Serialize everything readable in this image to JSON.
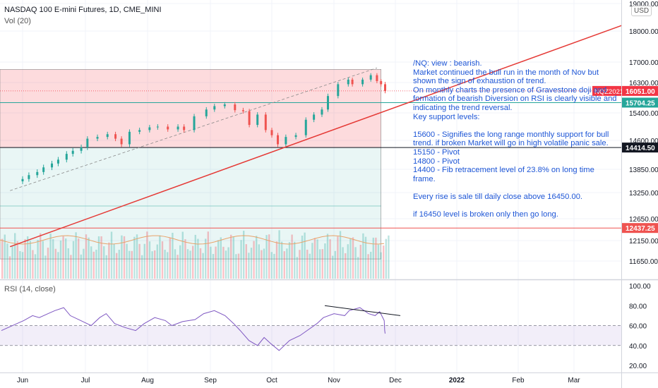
{
  "header": {
    "symbol_title": "NASDAQ 100 E-mini Futures, 1D, CME_MINI",
    "volume_label": "Vol (20)",
    "rsi_label": "RSI (14, close)",
    "currency": "USD"
  },
  "chart_data": [
    {
      "type": "candlestick",
      "title": "NASDAQ 100 E-mini Futures, 1D, CME_MINI",
      "ylim": [
        11200,
        19000
      ],
      "y_tick_labels": [
        "19000.00",
        "18000.00",
        "17000.00",
        "16300.00",
        "15400.00",
        "14600.00",
        "13850.00",
        "13250.00",
        "12650.00",
        "12150.00",
        "11650.00"
      ],
      "x_tick_labels": [
        "Jun",
        "Jul",
        "Aug",
        "Sep",
        "Oct",
        "Nov",
        "Dec",
        "2022",
        "Feb",
        "Mar"
      ],
      "series": [
        {
          "name": "NQZ2021",
          "points": [
            {
              "date": "2021-06-01",
              "close": 13600
            },
            {
              "date": "2021-06-04",
              "close": 13700
            },
            {
              "date": "2021-06-08",
              "close": 13780
            },
            {
              "date": "2021-06-11",
              "close": 13900
            },
            {
              "date": "2021-06-15",
              "close": 14000
            },
            {
              "date": "2021-06-18",
              "close": 14100
            },
            {
              "date": "2021-06-22",
              "close": 14250
            },
            {
              "date": "2021-06-25",
              "close": 14330
            },
            {
              "date": "2021-06-29",
              "close": 14420
            },
            {
              "date": "2021-07-02",
              "close": 14650
            },
            {
              "date": "2021-07-07",
              "close": 14700
            },
            {
              "date": "2021-07-12",
              "close": 14780
            },
            {
              "date": "2021-07-16",
              "close": 14650
            },
            {
              "date": "2021-07-19",
              "close": 14500
            },
            {
              "date": "2021-07-23",
              "close": 14850
            },
            {
              "date": "2021-07-28",
              "close": 14900
            },
            {
              "date": "2021-08-02",
              "close": 14980
            },
            {
              "date": "2021-08-06",
              "close": 15000
            },
            {
              "date": "2021-08-11",
              "close": 14920
            },
            {
              "date": "2021-08-16",
              "close": 15000
            },
            {
              "date": "2021-08-19",
              "close": 14900
            },
            {
              "date": "2021-08-24",
              "close": 15300
            },
            {
              "date": "2021-08-30",
              "close": 15500
            },
            {
              "date": "2021-09-03",
              "close": 15600
            },
            {
              "date": "2021-09-08",
              "close": 15650
            },
            {
              "date": "2021-09-13",
              "close": 15480
            },
            {
              "date": "2021-09-17",
              "close": 15450
            },
            {
              "date": "2021-09-20",
              "close": 15050
            },
            {
              "date": "2021-09-24",
              "close": 15350
            },
            {
              "date": "2021-09-28",
              "close": 14900
            },
            {
              "date": "2021-10-01",
              "close": 14750
            },
            {
              "date": "2021-10-04",
              "close": 14500
            },
            {
              "date": "2021-10-08",
              "close": 14700
            },
            {
              "date": "2021-10-13",
              "close": 14750
            },
            {
              "date": "2021-10-18",
              "close": 15200
            },
            {
              "date": "2021-10-22",
              "close": 15350
            },
            {
              "date": "2021-10-26",
              "close": 15500
            },
            {
              "date": "2021-10-29",
              "close": 15900
            },
            {
              "date": "2021-11-03",
              "close": 16250
            },
            {
              "date": "2021-11-08",
              "close": 16400
            },
            {
              "date": "2021-11-10",
              "close": 16250
            },
            {
              "date": "2021-11-15",
              "close": 16400
            },
            {
              "date": "2021-11-19",
              "close": 16550
            },
            {
              "date": "2021-11-22",
              "close": 16350
            },
            {
              "date": "2021-11-24",
              "close": 16250
            },
            {
              "date": "2021-11-26",
              "close": 16051
            }
          ]
        }
      ],
      "price_levels": [
        {
          "label": "15704.25",
          "value": 15704.25,
          "color": "#26a69a"
        },
        {
          "label": "14414.50",
          "value": 14414.5,
          "color": "#131722"
        },
        {
          "label": "12437.25",
          "value": 12437.25,
          "color": "#ef5350"
        }
      ],
      "last_price": {
        "label": "16051.00",
        "value": 16051,
        "symbol": "NQZ2021",
        "color": "#f23645"
      },
      "annotations": {
        "red_zone": {
          "from": 14414.5,
          "to": 16750
        },
        "green_zone": {
          "from": 11700,
          "to": 14414.5
        },
        "trendline": {
          "from": {
            "date": "2021-05-26",
            "value": 12000
          },
          "to": {
            "date": "2022-03-25",
            "value": 18200
          }
        },
        "dashed_channel": {
          "from": {
            "date": "2021-05-26",
            "value": 13300
          },
          "to": {
            "date": "2021-11-22",
            "value": 16800
          }
        }
      },
      "note": "/NQ: view : bearish.\nMarket continued the bull run in the month of Nov but shown the sign of exhaustion of trend.\nOn monthly charts the presence of Gravestone doji and formation of bearish Diversion on RSI is clearly visible and indicating the trend reversal.\nKey support levels:\n\n15600 - Signifies the long range monthly support for bull trend. if broken Market will go in high volatile panic sale.\n15150 - Pivot\n14800 - Pivot\n14400 - Fib retracement level of 23.8% on long time frame.\n\nEvery rise is sale till daily close above 16450.00.\n\nif 16450 level is broken only then go long."
    },
    {
      "type": "line",
      "title": "RSI (14, close)",
      "ylim": [
        15,
        105
      ],
      "y_tick_labels": [
        "100.00",
        "80.00",
        "60.00",
        "40.00",
        "20.00"
      ],
      "band": [
        40,
        60
      ],
      "series": [
        {
          "name": "RSI",
          "values": [
            55,
            58,
            62,
            65,
            70,
            68,
            72,
            75,
            78,
            70,
            65,
            60,
            68,
            72,
            62,
            58,
            55,
            62,
            68,
            65,
            60,
            64,
            66,
            72,
            75,
            70,
            62,
            55,
            45,
            40,
            48,
            42,
            35,
            45,
            50,
            56,
            62,
            68,
            72,
            70,
            75,
            78,
            72,
            70,
            74,
            65,
            55,
            52
          ]
        }
      ],
      "divergence_line": {
        "from": {
          "date": "2021-11-01",
          "value": 80
        },
        "to": {
          "date": "2021-12-01",
          "value": 70
        }
      }
    }
  ]
}
